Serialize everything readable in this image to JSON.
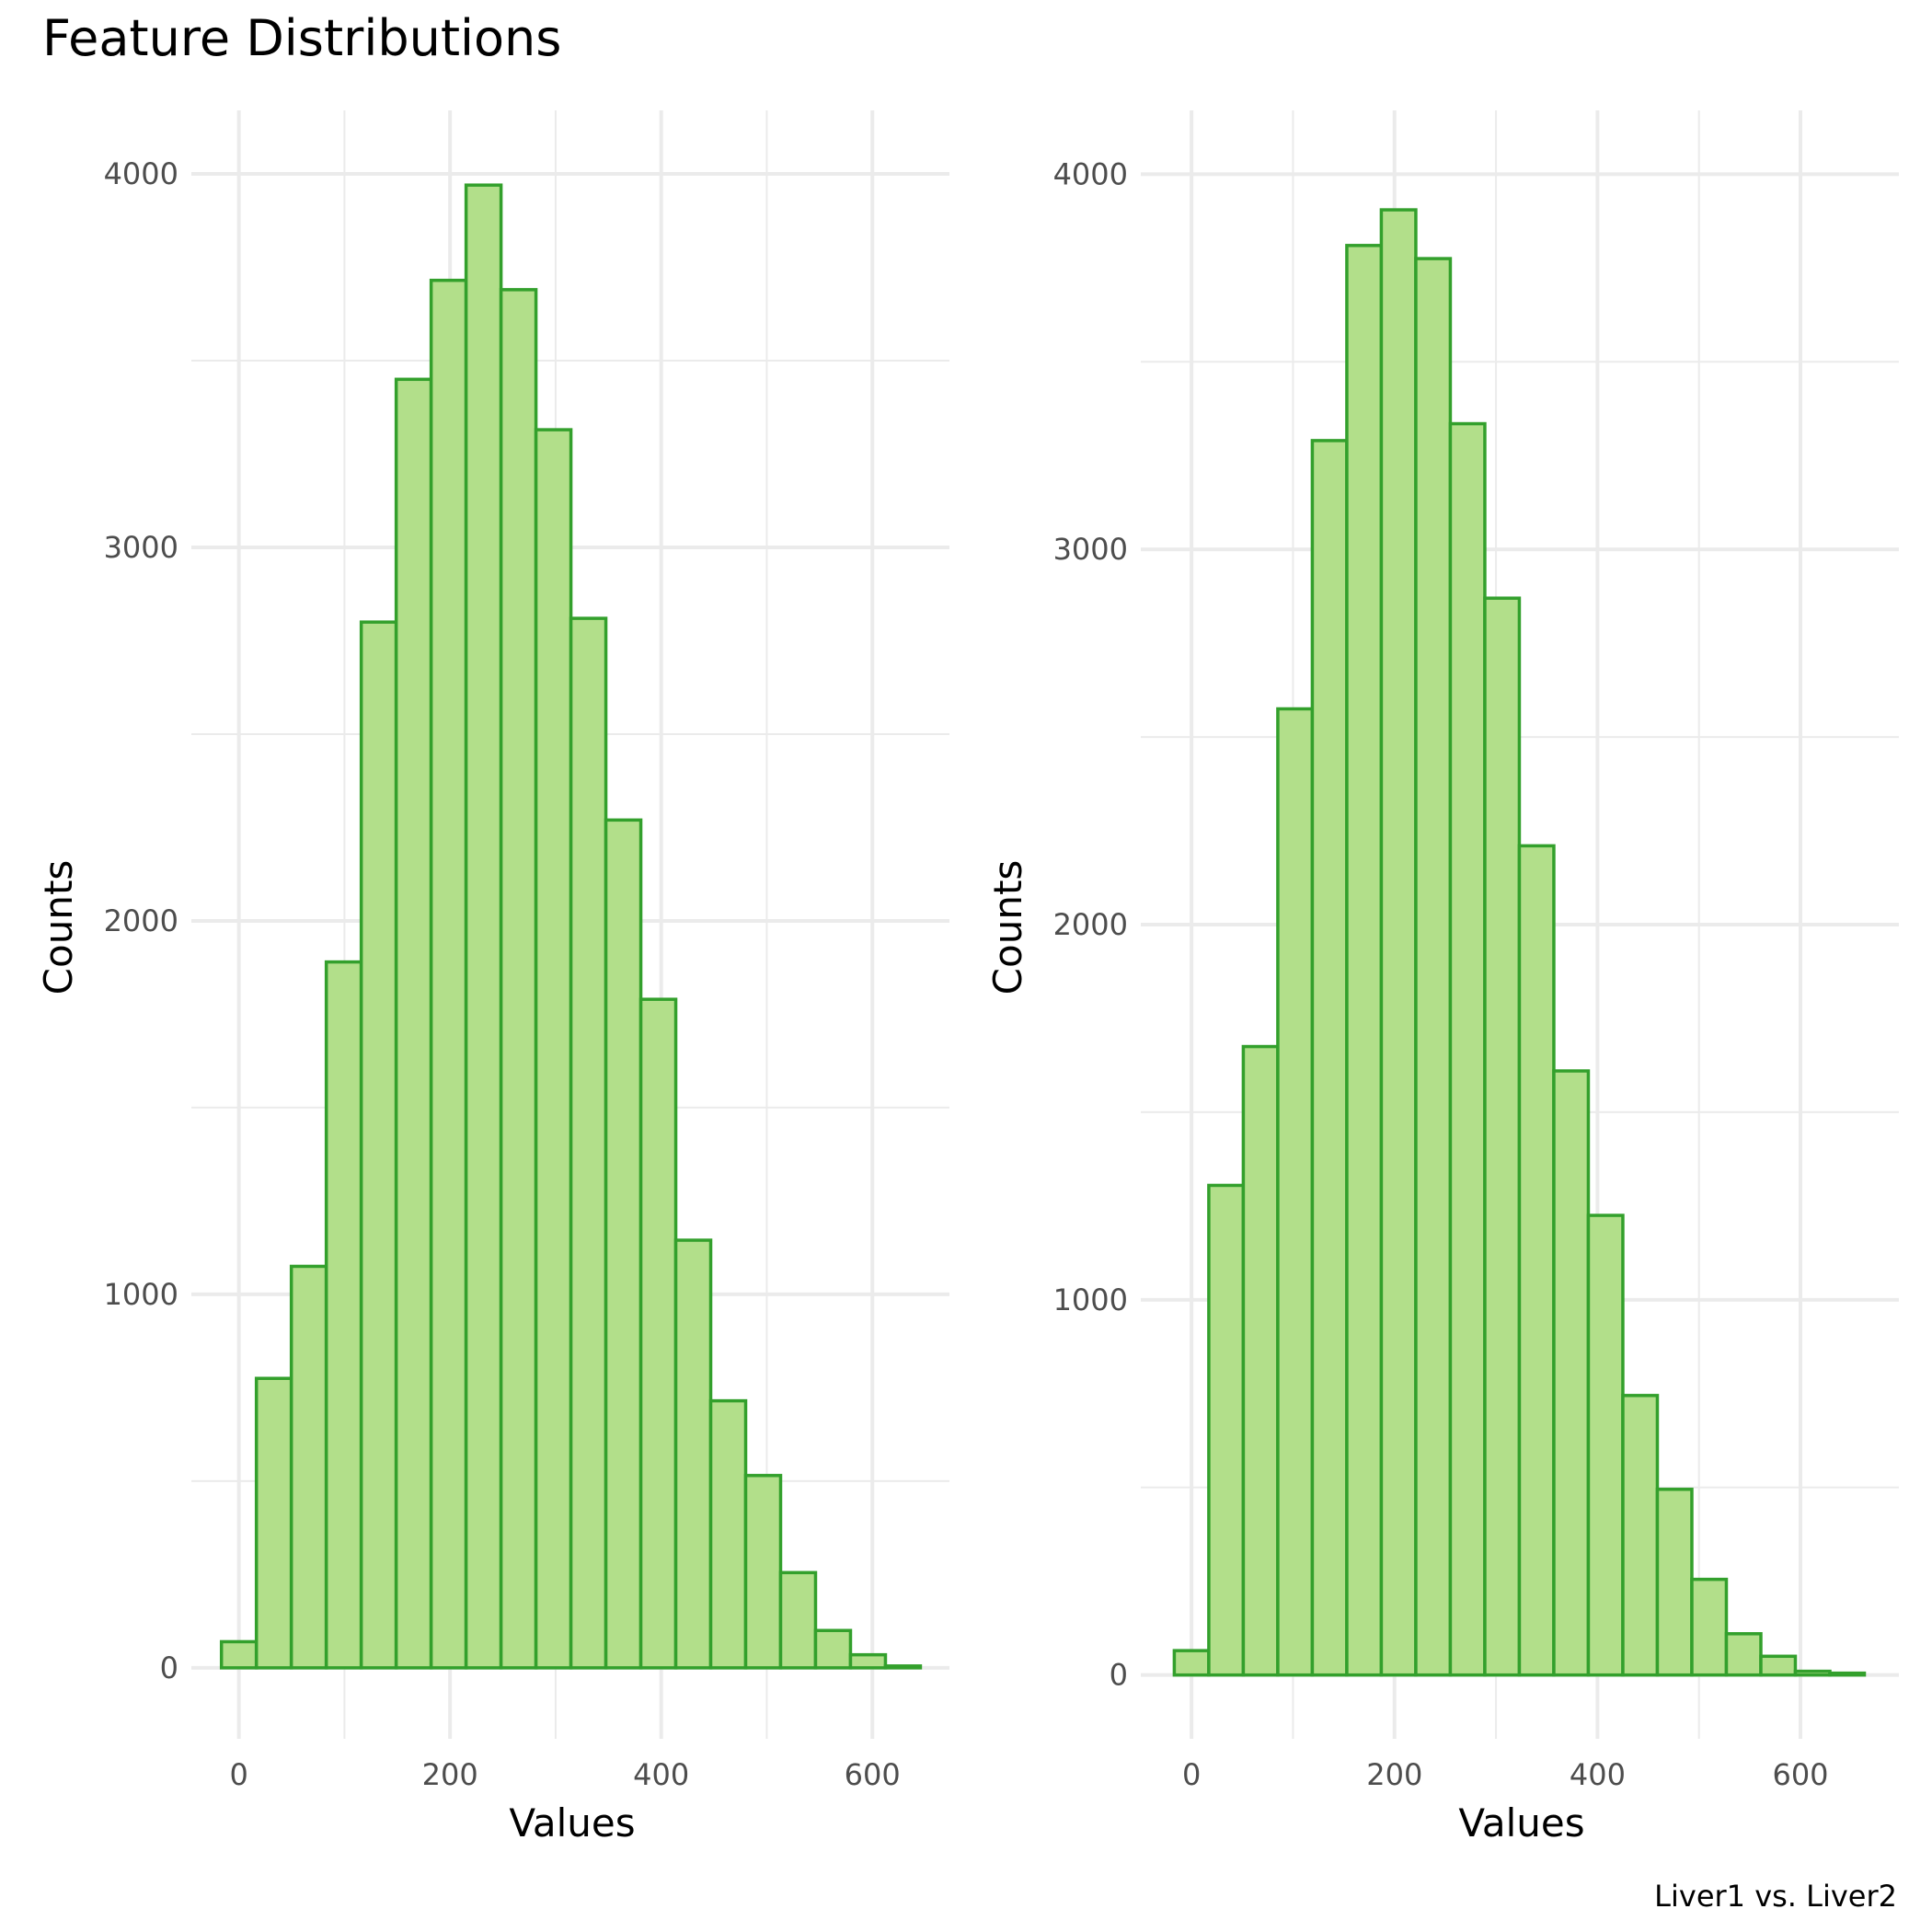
{
  "title": "Feature Distributions",
  "caption": "Liver1 vs. Liver2",
  "colors": {
    "fill": "#b2df8a",
    "outline": "#33a02c",
    "grid": "#ebebeb",
    "tick_text": "#4d4d4d"
  },
  "chart_data": [
    {
      "type": "bar",
      "subtype": "histogram",
      "xlabel": "Values",
      "ylabel": "Counts",
      "xlim": [
        -45,
        673
      ],
      "ylim": [
        -190,
        4170
      ],
      "xticks": [
        0,
        200,
        400,
        600
      ],
      "yticks": [
        0,
        1000,
        2000,
        3000,
        4000
      ],
      "grid": true,
      "bin_width": 33.1,
      "bins_start": -16.5,
      "values": [
        70,
        775,
        1075,
        1890,
        2800,
        3450,
        3715,
        3970,
        3690,
        3315,
        2810,
        2270,
        1790,
        1145,
        715,
        515,
        255,
        100,
        35,
        5
      ]
    },
    {
      "type": "bar",
      "subtype": "histogram",
      "xlabel": "Values",
      "ylabel": "Counts",
      "xlim": [
        -50,
        697
      ],
      "ylim": [
        -170,
        4170
      ],
      "xticks": [
        0,
        200,
        400,
        600
      ],
      "yticks": [
        0,
        1000,
        2000,
        3000,
        4000
      ],
      "grid": true,
      "bin_width": 34.0,
      "bins_start": -17.0,
      "values": [
        65,
        1305,
        1675,
        2575,
        3290,
        3810,
        3905,
        3775,
        3335,
        2870,
        2210,
        1610,
        1225,
        745,
        495,
        255,
        110,
        50,
        10,
        5
      ]
    }
  ]
}
